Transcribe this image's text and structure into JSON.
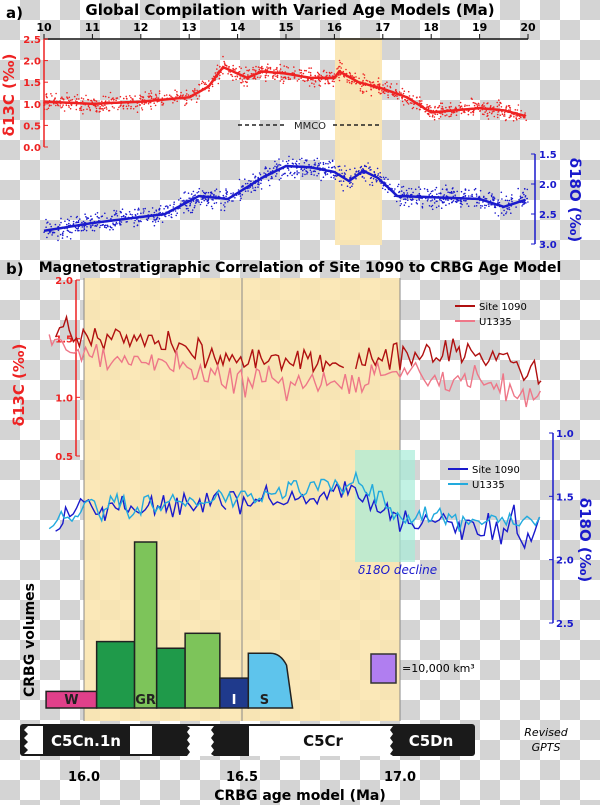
{
  "chart_data": [
    {
      "type": "scatter",
      "panel_label": "a)",
      "title": "Global Compilation with Varied Age Models (Ma)",
      "x_ticks": [
        "10",
        "11",
        "12",
        "13",
        "14",
        "15",
        "16",
        "17",
        "18",
        "19",
        "20"
      ],
      "xlim": [
        10,
        20
      ],
      "left_axis": {
        "label": "δ13C (‰)",
        "ticks": [
          "2.5",
          "2.0",
          "1.5",
          "1.0",
          "0.5",
          "0.0"
        ],
        "ylim": [
          0,
          2.5
        ],
        "color": "#ee2222"
      },
      "right_axis": {
        "label": "δ18O (‰)",
        "ticks": [
          "1.5",
          "2.0",
          "2.5",
          "3.0"
        ],
        "ylim": [
          1.5,
          3.0
        ],
        "inverted": true,
        "color": "#1a1acc"
      },
      "highlight_band": [
        16,
        17
      ],
      "annotation": "MMCO",
      "annotation_range": [
        14,
        17
      ],
      "series": [
        {
          "axis": "left",
          "color": "#ee2222",
          "trend_x": [
            10,
            11,
            12,
            13,
            13.4,
            13.7,
            14,
            14.2,
            14.5,
            15,
            15.5,
            16,
            16.1,
            16.5,
            17,
            17.5,
            18,
            18.5,
            19,
            19.5,
            20
          ],
          "trend_y": [
            1.05,
            1.0,
            1.05,
            1.15,
            1.4,
            1.85,
            1.7,
            1.6,
            1.75,
            1.7,
            1.6,
            1.6,
            1.75,
            1.5,
            1.35,
            1.15,
            0.8,
            0.85,
            0.9,
            0.85,
            0.7
          ]
        },
        {
          "axis": "right",
          "color": "#1a1acc",
          "trend_x": [
            10,
            11,
            12,
            12.5,
            13.2,
            13.8,
            14.5,
            15,
            15.5,
            16,
            16.3,
            16.6,
            16.9,
            17.3,
            18,
            19,
            19.5,
            20
          ],
          "trend_y": [
            2.78,
            2.65,
            2.55,
            2.5,
            2.2,
            2.25,
            1.9,
            1.7,
            1.72,
            1.8,
            1.95,
            1.78,
            1.9,
            2.2,
            2.22,
            2.25,
            2.38,
            2.25
          ]
        }
      ]
    },
    {
      "type": "line",
      "panel_label": "b)",
      "title": "Magnetostratigraphic Correlation of Site 1090 to CRBG Age Model",
      "xlabel": "CRBG age model (Ma)",
      "x_ticks": [
        "16.0",
        "16.5",
        "17.0"
      ],
      "xlim": [
        15.9,
        17.45
      ],
      "left_axis": {
        "label": "δ13C (‰)",
        "ticks": [
          "2.0",
          "1.5",
          "1.0",
          "0.5"
        ],
        "ylim": [
          0.5,
          2.0
        ],
        "color": "#ee2222"
      },
      "right_axis": {
        "label": "δ18O (‰)",
        "ticks": [
          "1.0",
          "1.5",
          "2.0",
          "2.5"
        ],
        "ylim": [
          1.0,
          2.5
        ],
        "inverted": true,
        "color": "#1a1acc"
      },
      "highlight_band": [
        16.0,
        17.0
      ],
      "divider": 16.5,
      "annotation": "δ18O decline",
      "legend_c": [
        "Site 1090",
        "U1335"
      ],
      "legend_o": [
        "Site 1090",
        "U1335"
      ],
      "series": [
        {
          "name": "Site 1090",
          "axis": "left",
          "color": "#b01010",
          "trend_x": [
            15.9,
            16.0,
            16.2,
            16.5,
            16.8,
            17.0,
            17.2,
            17.45
          ],
          "trend_y": [
            1.55,
            1.5,
            1.5,
            1.3,
            1.3,
            1.35,
            1.4,
            1.2
          ]
        },
        {
          "name": "U1335",
          "axis": "left",
          "color": "#ee7788",
          "trend_x": [
            15.9,
            16.0,
            16.2,
            16.5,
            16.8,
            17.0,
            17.2,
            17.45
          ],
          "trend_y": [
            1.55,
            1.35,
            1.3,
            1.15,
            1.1,
            1.2,
            1.15,
            1.0
          ]
        },
        {
          "name": "Site 1090",
          "axis": "right",
          "color": "#1a1acc",
          "trend_x": [
            15.9,
            16.0,
            16.5,
            16.85,
            17.0,
            17.2,
            17.45
          ],
          "trend_y": [
            1.7,
            1.6,
            1.55,
            1.45,
            1.7,
            1.75,
            1.8
          ]
        },
        {
          "name": "U1335",
          "axis": "right",
          "color": "#22aadd",
          "trend_x": [
            15.9,
            16.0,
            16.5,
            16.85,
            17.0,
            17.2,
            17.45
          ],
          "trend_y": [
            1.75,
            1.6,
            1.5,
            1.4,
            1.65,
            1.7,
            1.7
          ]
        }
      ]
    },
    {
      "type": "bar",
      "ylabel": "CRBG volumes",
      "legend": "=10,000 km³",
      "units": [
        {
          "label": "W",
          "start": 15.88,
          "end": 16.04,
          "volume": 1.0,
          "color": "#e0408a"
        },
        {
          "label": "",
          "start": 16.04,
          "end": 16.16,
          "volume": 4.0,
          "color": "#1f9a4a"
        },
        {
          "label": "GR",
          "start": 16.16,
          "end": 16.23,
          "volume": 10.0,
          "color": "#7dc45a"
        },
        {
          "label": "",
          "start": 16.23,
          "end": 16.32,
          "volume": 3.6,
          "color": "#1f9a4a"
        },
        {
          "label": "",
          "start": 16.32,
          "end": 16.43,
          "volume": 4.5,
          "color": "#7dc45a"
        },
        {
          "label": "I",
          "start": 16.43,
          "end": 16.52,
          "volume": 1.8,
          "color": "#1f3a8c"
        },
        {
          "label": "S",
          "start": 16.52,
          "end": 16.66,
          "volume": 3.3,
          "color": "#5ec4ec"
        }
      ]
    },
    {
      "type": "timescale",
      "label": "Revised GPTS",
      "chrons": [
        "C5Cn.1n",
        "C5Cr",
        "C5Dn"
      ]
    }
  ]
}
